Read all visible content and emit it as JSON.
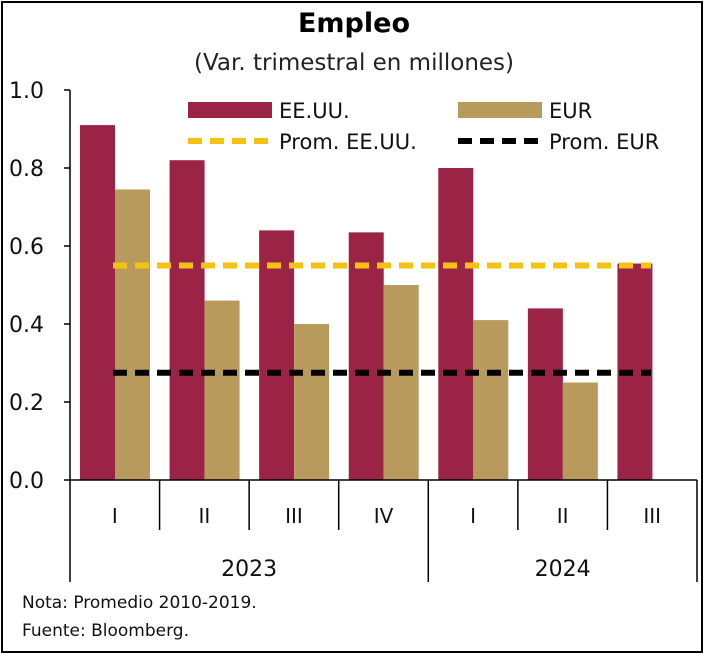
{
  "chart_data": {
    "type": "bar",
    "title": "Empleo",
    "subtitle": "(Var. trimestral en millones)",
    "categories": [
      "I",
      "II",
      "III",
      "IV",
      "I",
      "II",
      "III"
    ],
    "year_groups": [
      {
        "label": "2023",
        "count": 4
      },
      {
        "label": "2024",
        "count": 3
      }
    ],
    "series": [
      {
        "name": "EE.UU.",
        "color": "#9b2346",
        "values": [
          0.91,
          0.82,
          0.64,
          0.635,
          0.8,
          0.44,
          0.555
        ]
      },
      {
        "name": "EUR",
        "color": "#b99a5d",
        "values": [
          0.745,
          0.46,
          0.4,
          0.5,
          0.41,
          0.25,
          null
        ]
      }
    ],
    "reference_lines": [
      {
        "name": "Prom. EE.UU.",
        "color": "#f5c211",
        "value": 0.55
      },
      {
        "name": "Prom. EUR",
        "color": "#000000",
        "value": 0.275
      }
    ],
    "yticks": [
      "0.0",
      "0.2",
      "0.4",
      "0.6",
      "0.8",
      "1.0"
    ],
    "ylim": [
      0,
      1.0
    ],
    "legend_position": "top-right",
    "notes": [
      "Nota: Promedio 2010-2019.",
      "Fuente: Bloomberg."
    ]
  }
}
